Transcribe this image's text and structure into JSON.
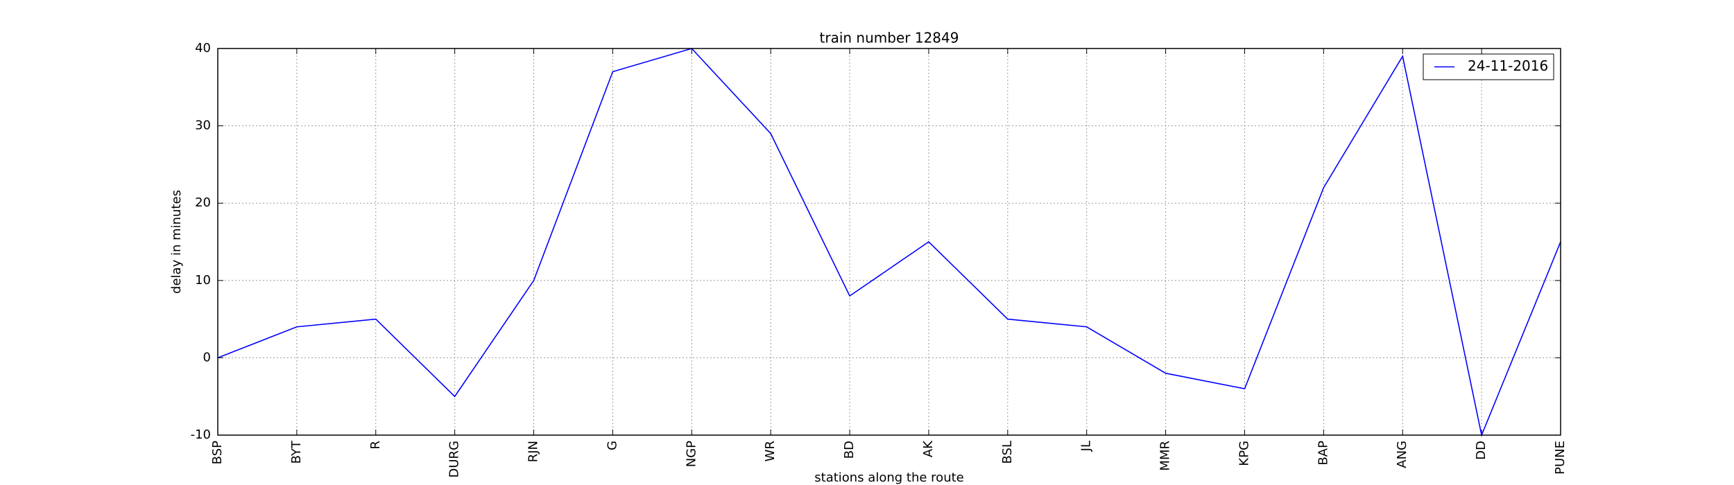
{
  "chart_data": {
    "type": "line",
    "title": "train number 12849",
    "x_label": "stations along the route",
    "y_label": "delay in minutes",
    "categories": [
      "BSP",
      "BYT",
      "R",
      "DURG",
      "RJN",
      "G",
      "NGP",
      "WR",
      "BD",
      "AK",
      "BSL",
      "JL",
      "MMR",
      "KPG",
      "BAP",
      "ANG",
      "DD",
      "PUNE"
    ],
    "series": [
      {
        "name": "24-11-2016",
        "color": "#0000ff",
        "values": [
          0,
          4,
          5,
          -5,
          10,
          37,
          40,
          29,
          8,
          15,
          5,
          4,
          -2,
          -4,
          22,
          39,
          -10,
          15
        ]
      }
    ],
    "ylim": [
      -10,
      40
    ],
    "yticks": [
      -10,
      0,
      10,
      20,
      30,
      40
    ],
    "grid": true,
    "legend": "upper right"
  }
}
